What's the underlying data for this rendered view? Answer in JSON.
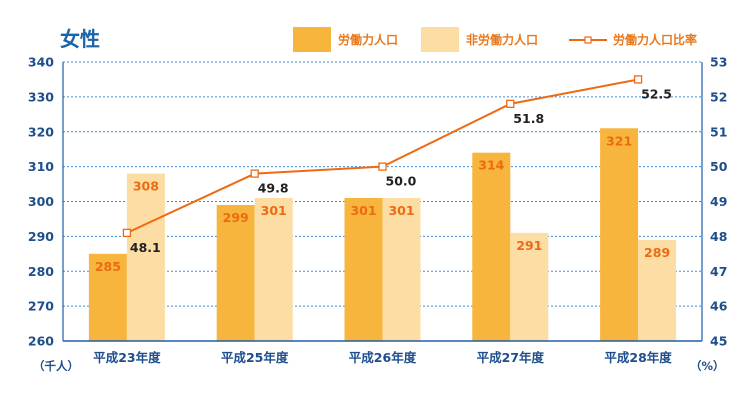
{
  "chart_data": {
    "type": "bar",
    "title": "女性",
    "categories": [
      "平成23年度",
      "平成25年度",
      "平成26年度",
      "平成27年度",
      "平成28年度"
    ],
    "series": [
      {
        "name": "労働力人口",
        "type": "bar",
        "axis": "left",
        "color": "#f7b53d",
        "values": [
          285,
          299,
          301,
          314,
          321
        ]
      },
      {
        "name": "非労働力人口",
        "type": "bar",
        "axis": "left",
        "color": "#fcdda4",
        "values": [
          308,
          301,
          301,
          291,
          289
        ]
      },
      {
        "name": "労働力人口比率",
        "type": "line",
        "axis": "right",
        "color": "#ee6a12",
        "values": [
          48.1,
          49.8,
          50.0,
          51.8,
          52.5
        ]
      }
    ],
    "value_labels": {
      "bar_a": [
        "285",
        "299",
        "301",
        "314",
        "321"
      ],
      "bar_b": [
        "308",
        "301",
        "301",
        "291",
        "289"
      ],
      "line": [
        "48.1",
        "49.8",
        "50.0",
        "51.8",
        "52.5"
      ]
    },
    "y_left": {
      "range": [
        260,
        340
      ],
      "ticks": [
        "260",
        "270",
        "280",
        "290",
        "300",
        "310",
        "320",
        "330",
        "340"
      ],
      "unit": "（千人）"
    },
    "y_right": {
      "range": [
        45,
        53
      ],
      "ticks": [
        "45",
        "46",
        "47",
        "48",
        "49",
        "50",
        "51",
        "52",
        "53"
      ],
      "unit": "（%）"
    },
    "grid": true,
    "legend_position": "top-right"
  }
}
